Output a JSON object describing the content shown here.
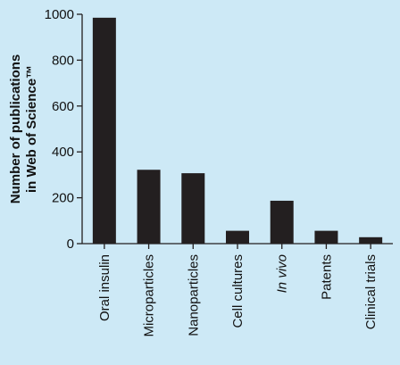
{
  "chart_data": {
    "type": "bar",
    "title": "",
    "xlabel": "",
    "ylabel_lines": [
      "Number of publications",
      "in Web of Science™"
    ],
    "categories": [
      "Oral insulin",
      "Microparticles",
      "Nanoparticles",
      "Cell cultures",
      "In vivo",
      "Patents",
      "Clinical trials"
    ],
    "italic_categories": [
      "In vivo"
    ],
    "values": [
      985,
      322,
      307,
      56,
      187,
      56,
      28
    ],
    "ylim": [
      0,
      1000
    ],
    "yticks": [
      0,
      200,
      400,
      600,
      800,
      1000
    ],
    "grid": false,
    "legend": "none",
    "colors": {
      "background": "#cde9f6",
      "bar": "#231f20",
      "axis": "#231f20",
      "text": "#111111"
    }
  }
}
